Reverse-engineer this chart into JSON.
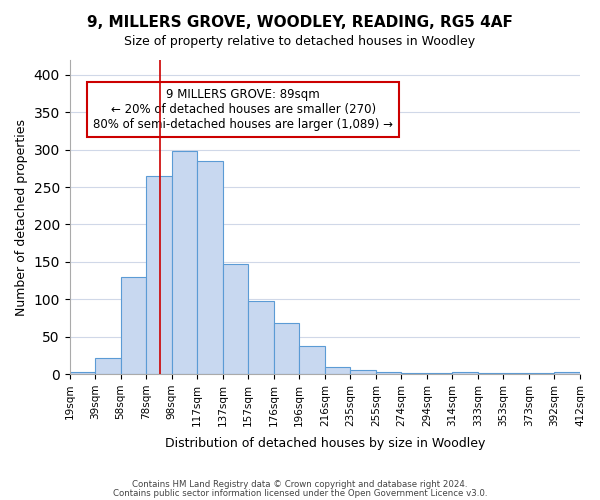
{
  "title": "9, MILLERS GROVE, WOODLEY, READING, RG5 4AF",
  "subtitle": "Size of property relative to detached houses in Woodley",
  "xlabel": "Distribution of detached houses by size in Woodley",
  "ylabel": "Number of detached properties",
  "bar_color": "#c8d8f0",
  "bar_edge_color": "#5b9bd5",
  "background_color": "#ffffff",
  "grid_color": "#d0d8e8",
  "bin_labels": [
    "19sqm",
    "39sqm",
    "58sqm",
    "78sqm",
    "98sqm",
    "117sqm",
    "137sqm",
    "157sqm",
    "176sqm",
    "196sqm",
    "216sqm",
    "235sqm",
    "255sqm",
    "274sqm",
    "294sqm",
    "314sqm",
    "333sqm",
    "353sqm",
    "373sqm",
    "392sqm",
    "412sqm"
  ],
  "bar_values": [
    3,
    22,
    130,
    265,
    298,
    285,
    147,
    98,
    68,
    37,
    9,
    5,
    3,
    1,
    1,
    3,
    1,
    1,
    1,
    3
  ],
  "ylim": [
    0,
    420
  ],
  "yticks": [
    0,
    50,
    100,
    150,
    200,
    250,
    300,
    350,
    400
  ],
  "property_line_x": 3.5,
  "annotation_line1": "9 MILLERS GROVE: 89sqm",
  "annotation_line2": "← 20% of detached houses are smaller (270)",
  "annotation_line3": "80% of semi-detached houses are larger (1,089) →",
  "annotation_box_color": "#ffffff",
  "annotation_box_edge": "#cc0000",
  "footer_line1": "Contains HM Land Registry data © Crown copyright and database right 2024.",
  "footer_line2": "Contains public sector information licensed under the Open Government Licence v3.0."
}
